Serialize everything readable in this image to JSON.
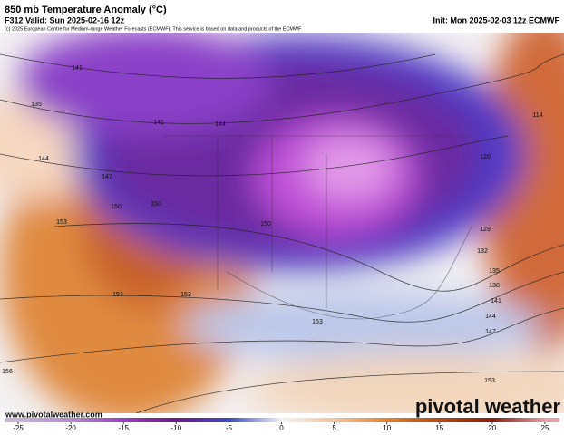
{
  "header": {
    "title": "850 mb Temperature Anomaly (°C)",
    "valid": "F312 Valid: Sun 2025-02-16 12z",
    "init": "Init: Mon 2025-02-03 12z ECMWF",
    "copyright": "(c) 2025 European Centre for Medium-range Weather Forecasts (ECMWF). This service is based on data and products of the ECMWF"
  },
  "footer": {
    "url": "www.pivotalweather.com",
    "watermark": "pivotal weather"
  },
  "colorbar": {
    "ticks": [
      -25,
      -20,
      -15,
      -10,
      -5,
      0,
      5,
      10,
      15,
      20,
      25
    ],
    "colors": [
      "#c9b3d6",
      "#b58ad0",
      "#9a3fc0",
      "#6a1a8a",
      "#3b48c8",
      "#f4f4f4",
      "#f2c49a",
      "#e4822e",
      "#b44a12",
      "#8a1e10",
      "#e4a0a8"
    ]
  },
  "contour_labels": [
    "141",
    "135",
    "144",
    "147",
    "150",
    "153",
    "150",
    "141",
    "144",
    "150",
    "153",
    "153",
    "153",
    "120",
    "114",
    "129",
    "132",
    "135",
    "138",
    "141",
    "144",
    "147",
    "153",
    "156"
  ]
}
